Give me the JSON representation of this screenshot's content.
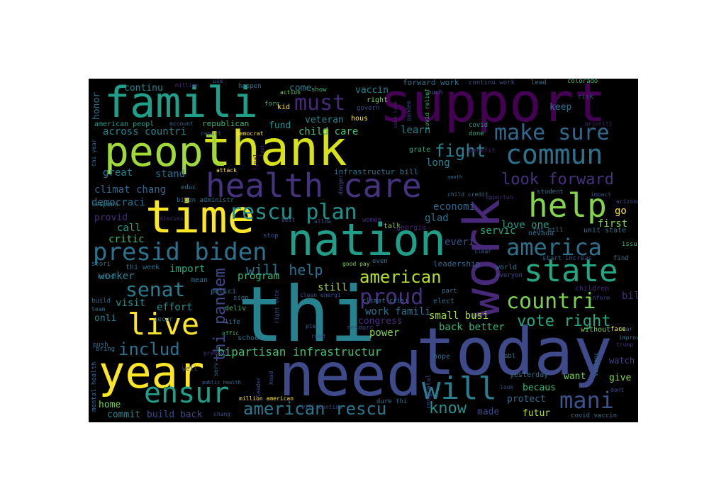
{
  "words": [
    {
      "text": "thi",
      "color": "#26828e",
      "weight": 1.0
    },
    {
      "text": "today",
      "color": "#3e4a89",
      "weight": 0.85
    },
    {
      "text": "need",
      "color": "#3e4a89",
      "weight": 0.8
    },
    {
      "text": "support",
      "color": "#440154",
      "weight": 0.7
    },
    {
      "text": "work",
      "color": "#482878",
      "weight": 0.7
    },
    {
      "text": "thank",
      "color": "#d8e219",
      "weight": 0.68
    },
    {
      "text": "nation",
      "color": "#1f9e89",
      "weight": 0.6
    },
    {
      "text": "famili",
      "color": "#1f9e89",
      "weight": 0.6
    },
    {
      "text": "peopl",
      "color": "#a0da39",
      "weight": 0.6
    },
    {
      "text": "time",
      "color": "#fde725",
      "weight": 0.6
    },
    {
      "text": "year",
      "color": "#fde725",
      "weight": 0.55
    },
    {
      "text": "health care",
      "color": "#46327e",
      "weight": 0.45
    },
    {
      "text": "help",
      "color": "#84d44b",
      "weight": 0.45
    },
    {
      "text": "state",
      "color": "#22a884",
      "weight": 0.42
    },
    {
      "text": "commun",
      "color": "#2c728e",
      "weight": 0.4
    },
    {
      "text": "will",
      "color": "#287d8e",
      "weight": 0.4
    },
    {
      "text": "live",
      "color": "#fde725",
      "weight": 0.38
    },
    {
      "text": "ensur",
      "color": "#1f9e89",
      "weight": 0.36
    },
    {
      "text": "presid biden",
      "color": "#2c728e",
      "weight": 0.32
    },
    {
      "text": "america",
      "color": "#2c728e",
      "weight": 0.32
    },
    {
      "text": "make sure",
      "color": "#31688e",
      "weight": 0.3
    },
    {
      "text": "mani",
      "color": "#3b528b",
      "weight": 0.3
    },
    {
      "text": "rescu plan",
      "color": "#21918c",
      "weight": 0.28
    },
    {
      "text": "countri",
      "color": "#7ad151",
      "weight": 0.28
    },
    {
      "text": "american rescu",
      "color": "#2a788e",
      "weight": 0.26
    },
    {
      "text": "senat",
      "color": "#287d8e",
      "weight": 0.26
    },
    {
      "text": "proud",
      "color": "#46327e",
      "weight": 0.26
    },
    {
      "text": "american",
      "color": "#b5de2b",
      "weight": 0.25
    },
    {
      "text": "must",
      "color": "#482878",
      "weight": 0.25
    },
    {
      "text": "fight",
      "color": "#26828e",
      "weight": 0.24
    },
    {
      "text": "thi pandem",
      "color": "#3e4a89",
      "weight": 0.22
    },
    {
      "text": "includ",
      "color": "#2c728e",
      "weight": 0.22
    },
    {
      "text": "look forward",
      "color": "#46327e",
      "weight": 0.2
    },
    {
      "text": "vote right",
      "color": "#22a884",
      "weight": 0.2
    },
    {
      "text": "know",
      "color": "#21918c",
      "weight": 0.2
    },
    {
      "text": "will help",
      "color": "#2c728e",
      "weight": 0.18
    },
    {
      "text": "bipartisan infrastructur",
      "color": "#44bf70",
      "weight": 0.15
    },
    {
      "text": "across countri",
      "color": "#26828e",
      "weight": 0.14
    },
    {
      "text": "child care",
      "color": "#44bf70",
      "weight": 0.14
    },
    {
      "text": "becaus",
      "color": "#35b779",
      "weight": 0.13
    },
    {
      "text": "futur",
      "color": "#b5de2b",
      "weight": 0.13
    },
    {
      "text": "protect",
      "color": "#31688e",
      "weight": 0.13
    },
    {
      "text": "want",
      "color": "#7ad151",
      "weight": 0.13
    },
    {
      "text": "give",
      "color": "#84d44b",
      "weight": 0.13
    },
    {
      "text": "watch",
      "color": "#404387",
      "weight": 0.12
    },
    {
      "text": "made",
      "color": "#3e4a89",
      "weight": 0.12
    },
    {
      "text": "build back",
      "color": "#3e4a89",
      "weight": 0.12
    },
    {
      "text": "commit",
      "color": "#26828e",
      "weight": 0.12
    },
    {
      "text": "home",
      "color": "#7ad151",
      "weight": 0.12
    },
    {
      "text": "power",
      "color": "#84d44b",
      "weight": 0.12
    },
    {
      "text": "congress",
      "color": "#472d7b",
      "weight": 0.12
    },
    {
      "text": "back better",
      "color": "#35b779",
      "weight": 0.12
    },
    {
      "text": "small busi",
      "color": "#a0da39",
      "weight": 0.12
    },
    {
      "text": "work famili",
      "color": "#2c728e",
      "weight": 0.12
    },
    {
      "text": "still",
      "color": "#a0da39",
      "weight": 0.12
    },
    {
      "text": "effort",
      "color": "#21918c",
      "weight": 0.12
    },
    {
      "text": "visit",
      "color": "#21918c",
      "weight": 0.12
    },
    {
      "text": "program",
      "color": "#35b779",
      "weight": 0.12
    },
    {
      "text": "onli",
      "color": "#26828e",
      "weight": 0.12
    },
    {
      "text": "worker",
      "color": "#26828e",
      "weight": 0.12
    },
    {
      "text": "import",
      "color": "#22a884",
      "weight": 0.12
    },
    {
      "text": "critic",
      "color": "#35b779",
      "weight": 0.12
    },
    {
      "text": "call",
      "color": "#1f9e89",
      "weight": 0.12
    },
    {
      "text": "provid",
      "color": "#472d7b",
      "weight": 0.12
    },
    {
      "text": "democraci",
      "color": "#2c728e",
      "weight": 0.12
    },
    {
      "text": "climat chang",
      "color": "#31688e",
      "weight": 0.12
    },
    {
      "text": "great",
      "color": "#287d8e",
      "weight": 0.12
    },
    {
      "text": "stand",
      "color": "#2c728e",
      "weight": 0.12
    },
    {
      "text": "long",
      "color": "#26828e",
      "weight": 0.12
    },
    {
      "text": "learn",
      "color": "#26828e",
      "weight": 0.12
    },
    {
      "text": "keep",
      "color": "#2c728e",
      "weight": 0.12
    },
    {
      "text": "glad",
      "color": "#2c728e",
      "weight": 0.12
    },
    {
      "text": "everi",
      "color": "#3b528b",
      "weight": 0.12
    },
    {
      "text": "economi",
      "color": "#31688e",
      "weight": 0.12
    },
    {
      "text": "servic",
      "color": "#22a884",
      "weight": 0.12
    },
    {
      "text": "love one",
      "color": "#1f9e89",
      "weight": 0.12
    },
    {
      "text": "first",
      "color": "#84d44b",
      "weight": 0.12
    },
    {
      "text": "go",
      "color": "#fde725",
      "weight": 0.12
    },
    {
      "text": "bill",
      "color": "#472d7b",
      "weight": 0.12
    },
    {
      "text": "continu",
      "color": "#26828e",
      "weight": 0.1
    },
    {
      "text": "come",
      "color": "#26828e",
      "weight": 0.1
    },
    {
      "text": "vaccin",
      "color": "#26828e",
      "weight": 0.1
    },
    {
      "text": "veteran",
      "color": "#26828e",
      "weight": 0.1
    },
    {
      "text": "fund",
      "color": "#21918c",
      "weight": 0.1
    },
    {
      "text": "honor",
      "color": "#2c728e",
      "weight": 0.1
    }
  ],
  "small_words": [
    {
      "text": "million",
      "color": "#482878"
    },
    {
      "text": "use",
      "color": "#3b528b"
    },
    {
      "text": "happen",
      "color": "#2c728e"
    },
    {
      "text": "forward work",
      "color": "#2c728e"
    },
    {
      "text": "continu work",
      "color": "#3e4a89"
    },
    {
      "text": "lead",
      "color": "#2c728e"
    },
    {
      "text": "colorado",
      "color": "#35b779"
    },
    {
      "text": "action",
      "color": "#7ad151"
    },
    {
      "text": "show",
      "color": "#35b779"
    },
    {
      "text": "much",
      "color": "#3b528b"
    },
    {
      "text": "risk",
      "color": "#3b528b"
    },
    {
      "text": "right",
      "color": "#84d44b"
    },
    {
      "text": "forc",
      "color": "#35b779"
    },
    {
      "text": "kid",
      "color": "#fde725"
    },
    {
      "text": "hous",
      "color": "#fde725"
    },
    {
      "text": "govern",
      "color": "#3e4a89"
    },
    {
      "text": "pandem",
      "color": "#3e4a89"
    },
    {
      "text": "covid relief",
      "color": "#35b779"
    },
    {
      "text": "prioriti",
      "color": "#482878"
    },
    {
      "text": "american peopl",
      "color": "#1f9e89"
    },
    {
      "text": "account",
      "color": "#31688e"
    },
    {
      "text": "republican",
      "color": "#35b779"
    },
    {
      "text": "democrat",
      "color": "#fde725"
    },
    {
      "text": "save live",
      "color": "#482878"
    },
    {
      "text": "report",
      "color": "#3b528b"
    },
    {
      "text": "covid",
      "color": "#21918c"
    },
    {
      "text": "done",
      "color": "#22a884"
    },
    {
      "text": "thi year",
      "color": "#31688e"
    },
    {
      "text": "grate",
      "color": "#22a884"
    },
    {
      "text": "benefit",
      "color": "#482878"
    },
    {
      "text": "final",
      "color": "#440154"
    },
    {
      "text": "lost",
      "color": "#472d7b"
    },
    {
      "text": "attack",
      "color": "#fde725"
    },
    {
      "text": "educ",
      "color": "#2c728e"
    },
    {
      "text": "infrastructur bill",
      "color": "#2c728e"
    },
    {
      "text": "danger",
      "color": "#3e4a89"
    },
    {
      "text": "anoth",
      "color": "#2c728e"
    },
    {
      "text": "child credit",
      "color": "#2c728e"
    },
    {
      "text": "opportun",
      "color": "#472d7b"
    },
    {
      "text": "impact",
      "color": "#3b528b"
    },
    {
      "text": "student",
      "color": "#2c728e"
    },
    {
      "text": "arizona",
      "color": "#3b528b"
    },
    {
      "text": "respons",
      "color": "#26828e"
    },
    {
      "text": "biden administr",
      "color": "#2c728e"
    },
    {
      "text": "discuss",
      "color": "#472d7b"
    },
    {
      "text": "talk",
      "color": "#84d44b"
    },
    {
      "text": "women",
      "color": "#472d7b"
    },
    {
      "text": "georgia",
      "color": "#482878"
    },
    {
      "text": "stop",
      "color": "#3b528b"
    },
    {
      "text": "nevada",
      "color": "#2c728e"
    },
    {
      "text": "thi bill",
      "color": "#2c728e"
    },
    {
      "text": "unit state",
      "color": "#2c728e"
    },
    {
      "text": "issu",
      "color": "#35b779"
    },
    {
      "text": "clear",
      "color": "#3b528b"
    },
    {
      "text": "find",
      "color": "#2c728e"
    },
    {
      "text": "stori",
      "color": "#2c728e"
    },
    {
      "text": "thi week",
      "color": "#2c728e"
    },
    {
      "text": "good pay",
      "color": "#7ad151"
    },
    {
      "text": "even",
      "color": "#2c728e"
    },
    {
      "text": "leadership",
      "color": "#31688e"
    },
    {
      "text": "world",
      "color": "#2c728e"
    },
    {
      "text": "start",
      "color": "#31688e"
    },
    {
      "text": "increas",
      "color": "#3b528b"
    },
    {
      "text": "everyon",
      "color": "#3e4a89"
    },
    {
      "text": "celebr",
      "color": "#2c728e"
    },
    {
      "text": "mean",
      "color": "#2c728e"
    },
    {
      "text": "polici",
      "color": "#2c728e"
    },
    {
      "text": "sign",
      "color": "#2c728e"
    },
    {
      "text": "climat crisi",
      "color": "#2c728e"
    },
    {
      "text": "part",
      "color": "#2c728e"
    },
    {
      "text": "children",
      "color": "#472d7b"
    },
    {
      "text": "inform",
      "color": "#3e4a89"
    },
    {
      "text": "build",
      "color": "#2c728e"
    },
    {
      "text": "deliv",
      "color": "#35b779"
    },
    {
      "text": "clean energi",
      "color": "#3b528b"
    },
    {
      "text": "elect",
      "color": "#2c728e"
    },
    {
      "text": "team",
      "color": "#2c728e"
    },
    {
      "text": "right vote",
      "color": "#3e4a89"
    },
    {
      "text": "secur",
      "color": "#2c728e"
    },
    {
      "text": "life",
      "color": "#2c728e"
    },
    {
      "text": "plea",
      "color": "#31688e"
    },
    {
      "text": "resourc",
      "color": "#3e4a89"
    },
    {
      "text": "without",
      "color": "#7ad151"
    },
    {
      "text": "hear",
      "color": "#2c728e"
    },
    {
      "text": "improv",
      "color": "#2c728e"
    },
    {
      "text": "trump",
      "color": "#472d7b"
    },
    {
      "text": "push",
      "color": "#2c728e"
    },
    {
      "text": "read",
      "color": "#3b528b"
    },
    {
      "text": "bring",
      "color": "#2c728e"
    },
    {
      "text": "prevent",
      "color": "#472d7b"
    },
    {
      "text": "school",
      "color": "#2c728e"
    },
    {
      "text": "offic",
      "color": "#35b779"
    },
    {
      "text": "hope",
      "color": "#2c728e"
    },
    {
      "text": "abl",
      "color": "#2c728e"
    },
    {
      "text": "yesterday",
      "color": "#2c728e"
    },
    {
      "text": "violenc",
      "color": "#2c728e"
    },
    {
      "text": "dont",
      "color": "#3b528b"
    },
    {
      "text": "congratul",
      "color": "#3e4a89"
    },
    {
      "text": "look",
      "color": "#3b528b"
    },
    {
      "text": "leader",
      "color": "#3b528b"
    },
    {
      "text": "well",
      "color": "#3b528b"
    },
    {
      "text": "public health",
      "color": "#31688e"
    },
    {
      "text": "head",
      "color": "#3b528b"
    },
    {
      "text": "mental health",
      "color": "#31688e"
    },
    {
      "text": "million american",
      "color": "#fde725"
    },
    {
      "text": "will continu",
      "color": "#3e4a89"
    },
    {
      "text": "dure thi",
      "color": "#2c728e"
    },
    {
      "text": "serv",
      "color": "#2c728e"
    },
    {
      "text": "face",
      "color": "#fde725"
    },
    {
      "text": "best",
      "color": "#3b528b"
    },
    {
      "text": "allow",
      "color": "#3b528b"
    },
    {
      "text": "chang",
      "color": "#3b528b"
    },
    {
      "text": "covid vaccin",
      "color": "#2c728e"
    }
  ]
}
